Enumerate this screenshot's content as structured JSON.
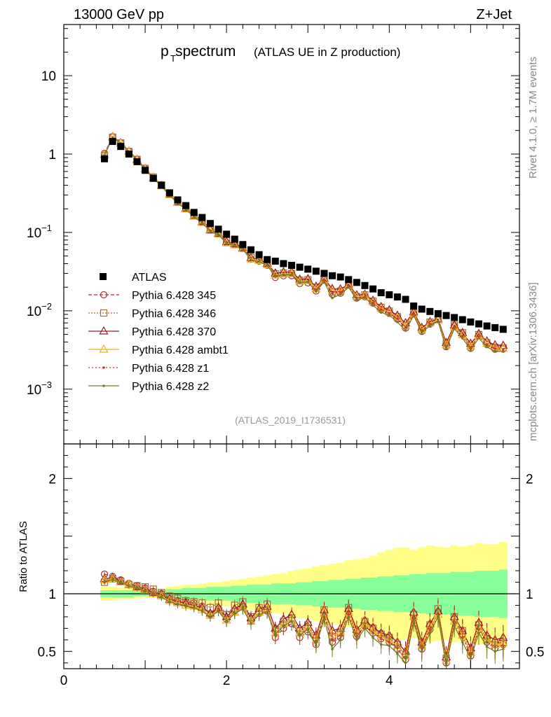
{
  "header": {
    "left": "13000 GeV pp",
    "right": "Z+Jet"
  },
  "title": {
    "main_p": "p",
    "main_sub": "T",
    "main_rest": " spectrum",
    "paren": "(ATLAS UE in Z production)"
  },
  "side_text": {
    "rivet": "Rivet 4.1.0, ≥ 1.7M events",
    "mcplots": "mcplots.cern.ch [arXiv:1306.3436]"
  },
  "analysis_id": "(ATLAS_2019_I1736531)",
  "colors": {
    "band_yellow": "#ffff88",
    "band_green": "#88ff99",
    "atlas": "#000000"
  },
  "chart_data": [
    {
      "type": "scatter",
      "name": "main",
      "yscale": "log",
      "ylim": [
        0.0002,
        45
      ],
      "xlim": [
        0,
        5.6
      ],
      "yticks": [
        {
          "v": 10,
          "base": "10",
          "exp": ""
        },
        {
          "v": 1,
          "base": "1",
          "exp": ""
        },
        {
          "v": 0.1,
          "base": "10",
          "exp": "−1"
        },
        {
          "v": 0.01,
          "base": "10",
          "exp": "−2"
        },
        {
          "v": 0.001,
          "base": "10",
          "exp": "−3"
        }
      ],
      "x": [
        0.5,
        0.6,
        0.7,
        0.8,
        0.9,
        1.0,
        1.1,
        1.2,
        1.3,
        1.4,
        1.5,
        1.6,
        1.7,
        1.8,
        1.9,
        2.0,
        2.1,
        2.2,
        2.3,
        2.4,
        2.5,
        2.6,
        2.7,
        2.8,
        2.9,
        3.0,
        3.1,
        3.2,
        3.3,
        3.4,
        3.5,
        3.6,
        3.7,
        3.8,
        3.9,
        4.0,
        4.1,
        4.2,
        4.3,
        4.4,
        4.5,
        4.6,
        4.7,
        4.8,
        4.9,
        5.0,
        5.1,
        5.2,
        5.3,
        5.4
      ],
      "atlas": [
        0.87,
        1.45,
        1.25,
        1.0,
        0.8,
        0.62,
        0.49,
        0.4,
        0.32,
        0.26,
        0.22,
        0.18,
        0.155,
        0.13,
        0.11,
        0.095,
        0.082,
        0.07,
        0.06,
        0.052,
        0.045,
        0.043,
        0.04,
        0.038,
        0.036,
        0.034,
        0.032,
        0.03,
        0.028,
        0.027,
        0.025,
        0.023,
        0.021,
        0.019,
        0.017,
        0.016,
        0.015,
        0.014,
        0.0115,
        0.0105,
        0.0098,
        0.0092,
        0.0087,
        0.0082,
        0.0077,
        0.0072,
        0.0068,
        0.0064,
        0.0061,
        0.0058
      ],
      "legend": [
        {
          "key": "atlas",
          "label": "ATLAS"
        },
        {
          "key": "s345",
          "label": "Pythia 6.428 345"
        },
        {
          "key": "s346",
          "label": "Pythia 6.428 346"
        },
        {
          "key": "s370",
          "label": "Pythia 6.428 370"
        },
        {
          "key": "ambt1",
          "label": "Pythia 6.428 ambt1"
        },
        {
          "key": "z1",
          "label": "Pythia 6.428 z1"
        },
        {
          "key": "z2",
          "label": "Pythia 6.428 z2"
        }
      ],
      "series": [
        {
          "key": "s345",
          "name": "Pythia 6.428 345",
          "color": "#b02a3a",
          "dash": "5,3",
          "marker": "circle",
          "ratio": [
            1.17,
            1.15,
            1.12,
            1.09,
            1.07,
            1.05,
            1.02,
            1.0,
            0.96,
            0.94,
            0.93,
            0.92,
            0.89,
            0.82,
            0.87,
            0.78,
            0.85,
            0.89,
            0.76,
            0.83,
            0.85,
            0.62,
            0.7,
            0.74,
            0.62,
            0.67,
            0.56,
            0.82,
            0.58,
            0.62,
            0.85,
            0.63,
            0.72,
            0.66,
            0.61,
            0.58,
            0.52,
            0.43,
            0.79,
            0.52,
            0.69,
            0.84,
            0.4,
            0.78,
            0.65,
            0.46,
            0.71,
            0.58,
            0.53,
            0.56
          ]
        },
        {
          "key": "s346",
          "name": "Pythia 6.428 346",
          "color": "#a0703a",
          "dash": "2,2",
          "marker": "square",
          "ratio": [
            1.1,
            1.13,
            1.11,
            1.08,
            1.07,
            1.06,
            1.04,
            1.01,
            0.98,
            0.96,
            0.94,
            0.93,
            0.92,
            0.88,
            0.92,
            0.82,
            0.9,
            0.93,
            0.8,
            0.88,
            0.91,
            0.69,
            0.76,
            0.79,
            0.68,
            0.73,
            0.62,
            0.86,
            0.62,
            0.66,
            0.88,
            0.66,
            0.76,
            0.7,
            0.65,
            0.62,
            0.56,
            0.47,
            0.82,
            0.56,
            0.73,
            0.87,
            0.44,
            0.8,
            0.68,
            0.5,
            0.73,
            0.61,
            0.56,
            0.58
          ]
        },
        {
          "key": "s370",
          "name": "Pythia 6.428 370",
          "color": "#9a1a28",
          "dash": "",
          "marker": "triangle",
          "ratio": [
            1.13,
            1.14,
            1.11,
            1.08,
            1.06,
            1.04,
            1.01,
            0.99,
            0.95,
            0.93,
            0.92,
            0.9,
            0.88,
            0.83,
            0.88,
            0.8,
            0.87,
            0.91,
            0.79,
            0.87,
            0.89,
            0.7,
            0.78,
            0.82,
            0.7,
            0.75,
            0.64,
            0.86,
            0.68,
            0.7,
            0.87,
            0.69,
            0.77,
            0.71,
            0.66,
            0.64,
            0.58,
            0.5,
            0.84,
            0.58,
            0.74,
            0.85,
            0.45,
            0.8,
            0.68,
            0.53,
            0.75,
            0.64,
            0.6,
            0.62
          ]
        },
        {
          "key": "ambt1",
          "name": "Pythia 6.428 ambt1",
          "color": "#f0b020",
          "dash": "",
          "marker": "triangle",
          "ratio": [
            1.12,
            1.13,
            1.1,
            1.08,
            1.05,
            1.03,
            1.0,
            0.98,
            0.94,
            0.92,
            0.9,
            0.89,
            0.86,
            0.81,
            0.86,
            0.77,
            0.84,
            0.88,
            0.76,
            0.84,
            0.86,
            0.66,
            0.74,
            0.78,
            0.66,
            0.71,
            0.6,
            0.83,
            0.64,
            0.67,
            0.84,
            0.66,
            0.74,
            0.68,
            0.63,
            0.6,
            0.55,
            0.46,
            0.8,
            0.55,
            0.71,
            0.82,
            0.42,
            0.76,
            0.64,
            0.49,
            0.71,
            0.6,
            0.56,
            0.57
          ]
        },
        {
          "key": "z1",
          "name": "Pythia 6.428 z1",
          "color": "#e03020",
          "dash": "2,3",
          "marker": "dot",
          "ratio": [
            1.1,
            1.12,
            1.1,
            1.07,
            1.05,
            1.03,
            1.0,
            0.97,
            0.93,
            0.91,
            0.9,
            0.88,
            0.85,
            0.8,
            0.85,
            0.76,
            0.83,
            0.87,
            0.74,
            0.82,
            0.84,
            0.64,
            0.72,
            0.76,
            0.64,
            0.69,
            0.58,
            0.8,
            0.6,
            0.64,
            0.82,
            0.63,
            0.72,
            0.66,
            0.61,
            0.58,
            0.53,
            0.44,
            0.78,
            0.53,
            0.69,
            0.8,
            0.4,
            0.74,
            0.62,
            0.47,
            0.69,
            0.58,
            0.54,
            0.55
          ]
        },
        {
          "key": "z2",
          "name": "Pythia 6.428 z2",
          "color": "#708020",
          "dash": "",
          "marker": "dot",
          "ratio": [
            1.11,
            1.12,
            1.1,
            1.07,
            1.05,
            1.02,
            1.0,
            0.97,
            0.93,
            0.91,
            0.89,
            0.88,
            0.85,
            0.8,
            0.85,
            0.76,
            0.83,
            0.87,
            0.74,
            0.82,
            0.84,
            0.65,
            0.72,
            0.76,
            0.64,
            0.69,
            0.55,
            0.78,
            0.52,
            0.6,
            0.8,
            0.6,
            0.7,
            0.62,
            0.56,
            0.55,
            0.48,
            0.4,
            0.76,
            0.5,
            0.66,
            0.8,
            0.38,
            0.72,
            0.58,
            0.44,
            0.66,
            0.54,
            0.5,
            0.52
          ]
        }
      ]
    },
    {
      "type": "scatter",
      "name": "ratio",
      "ylabel": "Ratio to ATLAS",
      "ylim": [
        0.35,
        2.3
      ],
      "yticks": [
        {
          "v": 0.5,
          "label": "0.5"
        },
        {
          "v": 1,
          "label": "1"
        },
        {
          "v": 2,
          "label": "2"
        }
      ],
      "xticks": [
        {
          "v": 0,
          "label": "0"
        },
        {
          "v": 2,
          "label": "2"
        },
        {
          "v": 4,
          "label": "4"
        }
      ],
      "band_green": [
        0.03,
        0.03,
        0.03,
        0.03,
        0.02,
        0.02,
        0.02,
        0.03,
        0.04,
        0.04,
        0.05,
        0.05,
        0.05,
        0.06,
        0.06,
        0.06,
        0.07,
        0.07,
        0.08,
        0.08,
        0.08,
        0.09,
        0.09,
        0.09,
        0.1,
        0.1,
        0.11,
        0.11,
        0.12,
        0.12,
        0.13,
        0.13,
        0.14,
        0.14,
        0.15,
        0.15,
        0.16,
        0.16,
        0.17,
        0.17,
        0.18,
        0.18,
        0.18,
        0.19,
        0.19,
        0.19,
        0.2,
        0.2,
        0.2,
        0.21
      ],
      "band_yellow": [
        0.06,
        0.06,
        0.05,
        0.05,
        0.04,
        0.03,
        0.03,
        0.04,
        0.06,
        0.07,
        0.08,
        0.08,
        0.09,
        0.1,
        0.1,
        0.11,
        0.12,
        0.13,
        0.14,
        0.15,
        0.16,
        0.17,
        0.18,
        0.2,
        0.21,
        0.22,
        0.24,
        0.25,
        0.26,
        0.27,
        0.29,
        0.3,
        0.31,
        0.33,
        0.36,
        0.38,
        0.4,
        0.4,
        0.38,
        0.4,
        0.42,
        0.41,
        0.4,
        0.42,
        0.41,
        0.42,
        0.44,
        0.43,
        0.43,
        0.45
      ]
    }
  ]
}
